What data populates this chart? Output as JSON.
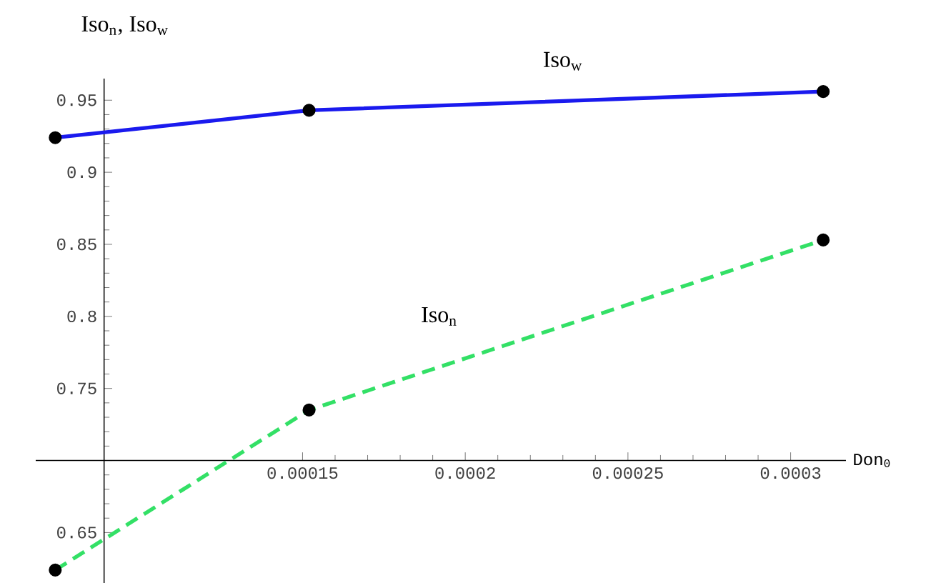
{
  "chart_data": {
    "type": "line",
    "xlabel": "Don$_{0}$",
    "ylabel": "Iso$_{n}$, Iso$_{w}$",
    "x": [
      7.4e-05,
      0.000152,
      0.00031
    ],
    "series": [
      {
        "name": "Iso$_{w}$",
        "color": "#1a1aee",
        "line_style": "solid",
        "values": [
          0.924,
          0.943,
          0.956
        ]
      },
      {
        "name": "Iso$_{n}$",
        "color": "#33e066",
        "line_style": "dashed",
        "values": [
          0.624,
          0.735,
          0.853
        ]
      }
    ],
    "marker": "circle",
    "grid": false,
    "legend": false,
    "xlim": [
      6.8e-05,
      0.000317
    ],
    "ylim": [
      0.615,
      0.965
    ],
    "xticks": [
      0.00015,
      0.0002,
      0.00025,
      0.0003
    ],
    "yticks": [
      0.65,
      {
        "value": 0.7,
        "label": null
      },
      0.75,
      0.8,
      0.85,
      0.9,
      0.95
    ]
  }
}
